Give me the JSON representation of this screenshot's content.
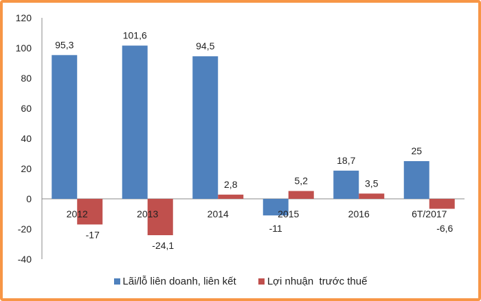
{
  "chart_data": {
    "type": "bar",
    "categories": [
      "2012",
      "2013",
      "2014",
      "2015",
      "2016",
      "6T/2017"
    ],
    "series": [
      {
        "name": "Lãi/lỗ liên doanh, liên kết",
        "color": "#4f81bd",
        "values": [
          95.3,
          101.6,
          94.5,
          -11,
          18.7,
          25
        ],
        "labels": [
          "95,3",
          "101,6",
          "94,5",
          "-11",
          "18,7",
          "25"
        ]
      },
      {
        "name": "Lợi nhuận  trước thuế",
        "color": "#c0504d",
        "values": [
          -17,
          -24.1,
          2.8,
          5.2,
          3.5,
          -6.6
        ],
        "labels": [
          "-17",
          "-24,1",
          "2,8",
          "5,2",
          "3,5",
          "-6,6"
        ]
      }
    ],
    "yticks": [
      120,
      100,
      80,
      60,
      40,
      20,
      0,
      -20,
      -40
    ],
    "ylim": [
      -40,
      120
    ],
    "grid": false,
    "legend_position": "bottom",
    "border_color": "#f79646"
  }
}
